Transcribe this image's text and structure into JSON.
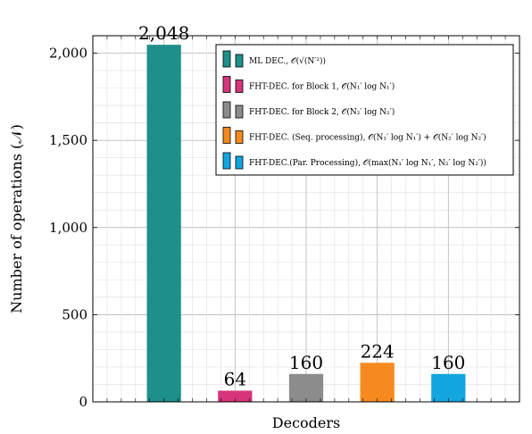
{
  "chart_data": {
    "type": "bar",
    "title": "",
    "xlabel": "Decoders",
    "ylabel": "Number of operations (𝒩)",
    "ylim": [
      0,
      2100
    ],
    "yticks": [
      0,
      500,
      1000,
      1500,
      2000
    ],
    "ytick_labels": [
      "0",
      "500",
      "1,000",
      "1,500",
      "2,000"
    ],
    "grid": true,
    "legend_position": "top-right",
    "series": [
      {
        "name": "ML DEC., 𝒪(√(N′²))",
        "value": 2048,
        "label": "2,048",
        "color": "#1f8f8a",
        "x": 1
      },
      {
        "name": "FHT-DEC. for Block 1, 𝒪(N₁′ log N₁′)",
        "value": 64,
        "label": "64",
        "color": "#d6357c",
        "x": 2
      },
      {
        "name": "FHT-DEC. for Block 2, 𝒪(N₂′ log N₂′)",
        "value": 160,
        "label": "160",
        "color": "#8c8c8c",
        "x": 3
      },
      {
        "name": "FHT-DEC. (Seq. processing), 𝒪(N₁′ log N₁′) + 𝒪(N₂′ log N₂′)",
        "value": 224,
        "label": "224",
        "color": "#f68a1f",
        "x": 4
      },
      {
        "name": "FHT-DEC.(Par. Processing), 𝒪(max(N₁′ log N₁′, N₂′ log N₂′))",
        "value": 160,
        "label": "160",
        "color": "#13a6de",
        "x": 5
      }
    ]
  }
}
